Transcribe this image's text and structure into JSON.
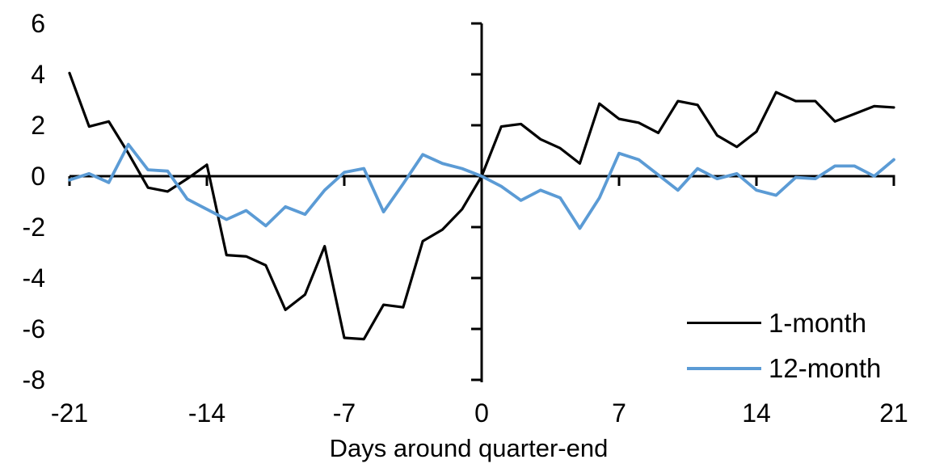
{
  "chart_data": {
    "type": "line",
    "title": "",
    "xlabel": "Days around quarter-end",
    "ylabel": "",
    "xlim": [
      -21,
      21
    ],
    "ylim": [
      -8,
      6
    ],
    "x_ticks": [
      -21,
      -14,
      -7,
      0,
      7,
      14,
      21
    ],
    "y_ticks": [
      6,
      4,
      2,
      0,
      -2,
      -4,
      -6,
      -8
    ],
    "grid": false,
    "legend_position": "lower right",
    "axis_color": "#000000",
    "x": [
      -21,
      -20,
      -19,
      -18,
      -17,
      -16,
      -15,
      -14,
      -13,
      -12,
      -11,
      -10,
      -9,
      -8,
      -7,
      -6,
      -5,
      -4,
      -3,
      -2,
      -1,
      0,
      1,
      2,
      3,
      4,
      5,
      6,
      7,
      8,
      9,
      10,
      11,
      12,
      13,
      14,
      15,
      16,
      17,
      18,
      19,
      20,
      21
    ],
    "series": [
      {
        "name": "1-month",
        "color": "#000000",
        "values": [
          4.05,
          1.95,
          2.15,
          0.9,
          -0.45,
          -0.6,
          -0.1,
          0.45,
          -3.1,
          -3.15,
          -3.5,
          -5.25,
          -4.65,
          -2.75,
          -6.35,
          -6.4,
          -5.05,
          -5.15,
          -2.55,
          -2.1,
          -1.3,
          0,
          1.95,
          2.05,
          1.45,
          1.1,
          0.5,
          2.85,
          2.25,
          2.1,
          1.7,
          2.95,
          2.8,
          1.6,
          1.15,
          1.75,
          3.3,
          2.95,
          2.95,
          2.15,
          2.45,
          2.75,
          2.7
        ]
      },
      {
        "name": "12-month",
        "color": "#5B9BD5",
        "values": [
          -0.15,
          0.1,
          -0.25,
          1.25,
          0.25,
          0.2,
          -0.9,
          -1.3,
          -1.7,
          -1.35,
          -1.95,
          -1.2,
          -1.5,
          -0.55,
          0.15,
          0.3,
          -1.4,
          -0.3,
          0.85,
          0.5,
          0.3,
          0,
          -0.4,
          -0.95,
          -0.55,
          -0.85,
          -2.05,
          -0.85,
          0.9,
          0.65,
          0.05,
          -0.55,
          0.3,
          -0.1,
          0.1,
          -0.55,
          -0.75,
          -0.05,
          -0.1,
          0.4,
          0.4,
          0.0,
          0.65
        ]
      }
    ]
  }
}
